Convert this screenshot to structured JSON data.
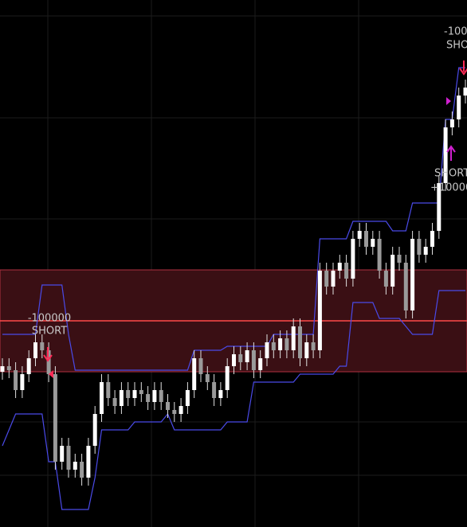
{
  "chart_data": {
    "type": "candlestick",
    "ylim": [
      0,
      662
    ],
    "open": [
      195,
      202,
      197,
      172,
      192,
      212,
      232,
      222,
      192,
      82,
      102,
      72,
      82,
      62,
      102,
      142,
      182,
      162,
      152,
      172,
      162,
      172,
      167,
      157,
      172,
      157,
      147,
      142,
      152,
      172,
      212,
      192,
      182,
      162,
      172,
      202,
      217,
      207,
      222,
      197,
      212,
      232,
      222,
      237,
      222,
      252,
      212,
      232,
      222,
      322,
      302,
      322,
      332,
      312,
      362,
      372,
      352,
      362,
      322,
      302,
      342,
      332,
      272,
      362,
      342,
      352,
      372,
      432,
      502,
      512,
      542
    ],
    "high": [
      212,
      212,
      207,
      202,
      222,
      242,
      242,
      232,
      202,
      112,
      112,
      92,
      92,
      112,
      152,
      192,
      192,
      172,
      182,
      182,
      182,
      182,
      177,
      182,
      182,
      167,
      157,
      162,
      182,
      222,
      222,
      202,
      192,
      182,
      212,
      227,
      227,
      232,
      232,
      222,
      242,
      242,
      247,
      247,
      262,
      262,
      242,
      242,
      332,
      332,
      332,
      342,
      342,
      372,
      382,
      382,
      372,
      372,
      332,
      352,
      352,
      342,
      372,
      372,
      362,
      382,
      442,
      512,
      522,
      552,
      562
    ],
    "low": [
      185,
      187,
      162,
      162,
      182,
      202,
      212,
      182,
      72,
      72,
      62,
      62,
      52,
      52,
      92,
      132,
      152,
      142,
      142,
      152,
      152,
      157,
      147,
      147,
      147,
      137,
      132,
      132,
      142,
      162,
      182,
      172,
      152,
      152,
      162,
      192,
      197,
      197,
      187,
      187,
      202,
      212,
      212,
      212,
      212,
      202,
      202,
      212,
      212,
      292,
      292,
      312,
      302,
      302,
      352,
      342,
      342,
      312,
      292,
      292,
      322,
      262,
      262,
      332,
      332,
      342,
      362,
      422,
      492,
      502,
      532
    ],
    "close": [
      202,
      197,
      172,
      192,
      212,
      232,
      222,
      192,
      82,
      102,
      72,
      82,
      62,
      102,
      142,
      182,
      162,
      152,
      172,
      162,
      172,
      167,
      157,
      172,
      157,
      147,
      142,
      152,
      172,
      212,
      192,
      182,
      162,
      172,
      202,
      217,
      207,
      222,
      197,
      212,
      232,
      222,
      237,
      222,
      252,
      212,
      232,
      222,
      322,
      302,
      322,
      332,
      312,
      362,
      372,
      352,
      362,
      322,
      302,
      342,
      332,
      272,
      362,
      342,
      352,
      372,
      432,
      502,
      512,
      542,
      552
    ],
    "upper": [
      242,
      242,
      242,
      242,
      242,
      242,
      304,
      304,
      304,
      304,
      242,
      197,
      197,
      197,
      197,
      197,
      197,
      197,
      197,
      197,
      197,
      197,
      197,
      197,
      197,
      197,
      197,
      197,
      197,
      222,
      222,
      222,
      222,
      222,
      227,
      227,
      227,
      227,
      227,
      227,
      227,
      242,
      242,
      242,
      242,
      242,
      242,
      242,
      362,
      362,
      362,
      362,
      362,
      384,
      384,
      384,
      384,
      384,
      384,
      372,
      372,
      372,
      407,
      407,
      407,
      407,
      407,
      512,
      512,
      577,
      577
    ],
    "lower": [
      102,
      122,
      142,
      142,
      142,
      142,
      142,
      82,
      82,
      22,
      22,
      22,
      22,
      22,
      62,
      122,
      122,
      122,
      122,
      122,
      132,
      132,
      132,
      132,
      132,
      142,
      122,
      122,
      122,
      122,
      122,
      122,
      122,
      122,
      132,
      132,
      132,
      132,
      182,
      182,
      182,
      182,
      182,
      182,
      182,
      192,
      192,
      192,
      192,
      192,
      192,
      202,
      202,
      282,
      282,
      282,
      282,
      262,
      262,
      262,
      262,
      252,
      242,
      242,
      242,
      242,
      297,
      297,
      297,
      297,
      297
    ],
    "band": {
      "low": 195,
      "high": 323,
      "mid": 259
    },
    "annotations": [
      "-100000",
      "SHORT",
      "-100",
      "SHO",
      "SHORT",
      "+10000"
    ]
  }
}
